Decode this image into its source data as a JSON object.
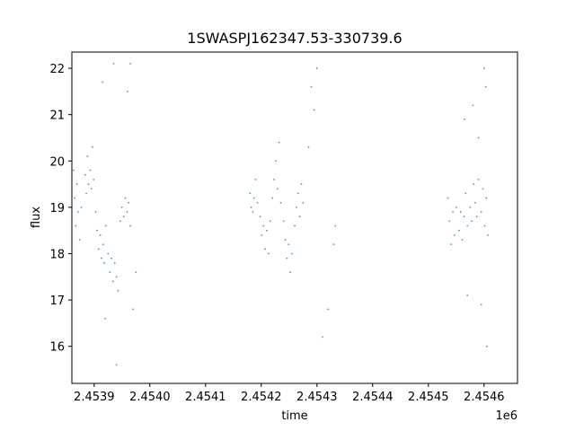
{
  "chart_data": {
    "type": "scatter",
    "title": "1SWASPJ162347.53-330739.6",
    "xlabel": "time",
    "ylabel": "flux",
    "x_offset_label": "1e6",
    "xlim": [
      2.45386,
      2.45466
    ],
    "ylim": [
      15.2,
      22.35
    ],
    "x_ticks": [
      2.4539,
      2.454,
      2.4541,
      2.4542,
      2.4543,
      2.4544,
      2.4545,
      2.4546
    ],
    "x_tick_labels": [
      "2.4539",
      "2.4540",
      "2.4541",
      "2.4542",
      "2.4543",
      "2.4544",
      "2.4545",
      "2.4546"
    ],
    "y_ticks": [
      16,
      17,
      18,
      19,
      20,
      21,
      22
    ],
    "y_tick_labels": [
      "16",
      "17",
      "18",
      "19",
      "20",
      "21",
      "22"
    ],
    "grid": false,
    "marker_color": "#1f77b4",
    "series": [
      {
        "points": [
          [
            2.453863,
            19.8
          ],
          [
            2.453865,
            19.2
          ],
          [
            2.453867,
            18.6
          ],
          [
            2.453869,
            19.5
          ],
          [
            2.453871,
            18.9
          ],
          [
            2.453874,
            18.3
          ],
          [
            2.453877,
            19.0
          ],
          [
            2.453884,
            19.7
          ],
          [
            2.453886,
            19.3
          ],
          [
            2.453888,
            20.1
          ],
          [
            2.45389,
            19.5
          ],
          [
            2.453893,
            19.8
          ],
          [
            2.453895,
            19.4
          ],
          [
            2.453897,
            20.3
          ],
          [
            2.453899,
            19.6
          ],
          [
            2.453903,
            18.9
          ],
          [
            2.453905,
            18.5
          ],
          [
            2.453908,
            18.1
          ],
          [
            2.453911,
            18.4
          ],
          [
            2.453913,
            17.9
          ],
          [
            2.453916,
            18.2
          ],
          [
            2.453918,
            17.8
          ],
          [
            2.453921,
            18.6
          ],
          [
            2.453925,
            18.0
          ],
          [
            2.453928,
            17.6
          ],
          [
            2.453931,
            17.9
          ],
          [
            2.453934,
            17.4
          ],
          [
            2.453937,
            17.8
          ],
          [
            2.45394,
            17.5
          ],
          [
            2.453943,
            17.2
          ],
          [
            2.453947,
            18.7
          ],
          [
            2.45395,
            19.0
          ],
          [
            2.453953,
            18.8
          ],
          [
            2.453956,
            19.2
          ],
          [
            2.453959,
            18.9
          ],
          [
            2.453962,
            19.1
          ],
          [
            2.453965,
            18.6
          ],
          [
            2.453915,
            21.7
          ],
          [
            2.45392,
            16.6
          ],
          [
            2.453935,
            22.1
          ],
          [
            2.45394,
            15.6
          ],
          [
            2.45396,
            21.5
          ],
          [
            2.453965,
            22.1
          ],
          [
            2.45397,
            16.8
          ],
          [
            2.453975,
            17.6
          ],
          [
            2.45418,
            19.3
          ],
          [
            2.454182,
            19.0
          ],
          [
            2.454185,
            18.9
          ],
          [
            2.454187,
            19.2
          ],
          [
            2.45419,
            19.6
          ],
          [
            2.454193,
            19.1
          ],
          [
            2.454198,
            18.8
          ],
          [
            2.454201,
            18.4
          ],
          [
            2.454204,
            18.6
          ],
          [
            2.454207,
            18.1
          ],
          [
            2.45421,
            18.5
          ],
          [
            2.454213,
            18.0
          ],
          [
            2.454216,
            18.7
          ],
          [
            2.45422,
            19.2
          ],
          [
            2.454223,
            19.6
          ],
          [
            2.454226,
            20.0
          ],
          [
            2.454229,
            19.4
          ],
          [
            2.454232,
            20.4
          ],
          [
            2.454235,
            19.1
          ],
          [
            2.45424,
            18.7
          ],
          [
            2.454243,
            18.3
          ],
          [
            2.454246,
            17.9
          ],
          [
            2.454249,
            18.2
          ],
          [
            2.454252,
            17.6
          ],
          [
            2.454255,
            18.0
          ],
          [
            2.45426,
            18.6
          ],
          [
            2.454263,
            19.0
          ],
          [
            2.454266,
            19.3
          ],
          [
            2.454269,
            18.8
          ],
          [
            2.454272,
            19.5
          ],
          [
            2.454275,
            19.1
          ],
          [
            2.454285,
            20.3
          ],
          [
            2.45429,
            21.6
          ],
          [
            2.454295,
            21.1
          ],
          [
            2.4543,
            22.0
          ],
          [
            2.45431,
            16.2
          ],
          [
            2.45432,
            16.8
          ],
          [
            2.45433,
            18.2
          ],
          [
            2.454333,
            18.6
          ],
          [
            2.454535,
            19.2
          ],
          [
            2.454538,
            18.7
          ],
          [
            2.454541,
            18.2
          ],
          [
            2.454544,
            18.9
          ],
          [
            2.454547,
            18.4
          ],
          [
            2.45455,
            19.0
          ],
          [
            2.454555,
            18.5
          ],
          [
            2.454558,
            18.9
          ],
          [
            2.454561,
            18.3
          ],
          [
            2.454564,
            18.8
          ],
          [
            2.454567,
            19.3
          ],
          [
            2.45457,
            18.6
          ],
          [
            2.454575,
            19.0
          ],
          [
            2.454578,
            18.7
          ],
          [
            2.454581,
            19.5
          ],
          [
            2.454584,
            19.1
          ],
          [
            2.454587,
            18.8
          ],
          [
            2.45459,
            19.6
          ],
          [
            2.454595,
            18.9
          ],
          [
            2.454598,
            19.4
          ],
          [
            2.454601,
            18.6
          ],
          [
            2.454604,
            19.2
          ],
          [
            2.454607,
            18.4
          ],
          [
            2.454565,
            20.9
          ],
          [
            2.45458,
            21.2
          ],
          [
            2.45459,
            20.5
          ],
          [
            2.4546,
            22.0
          ],
          [
            2.454603,
            21.6
          ],
          [
            2.454605,
            16.0
          ],
          [
            2.454595,
            16.9
          ],
          [
            2.45457,
            17.1
          ]
        ]
      }
    ]
  }
}
